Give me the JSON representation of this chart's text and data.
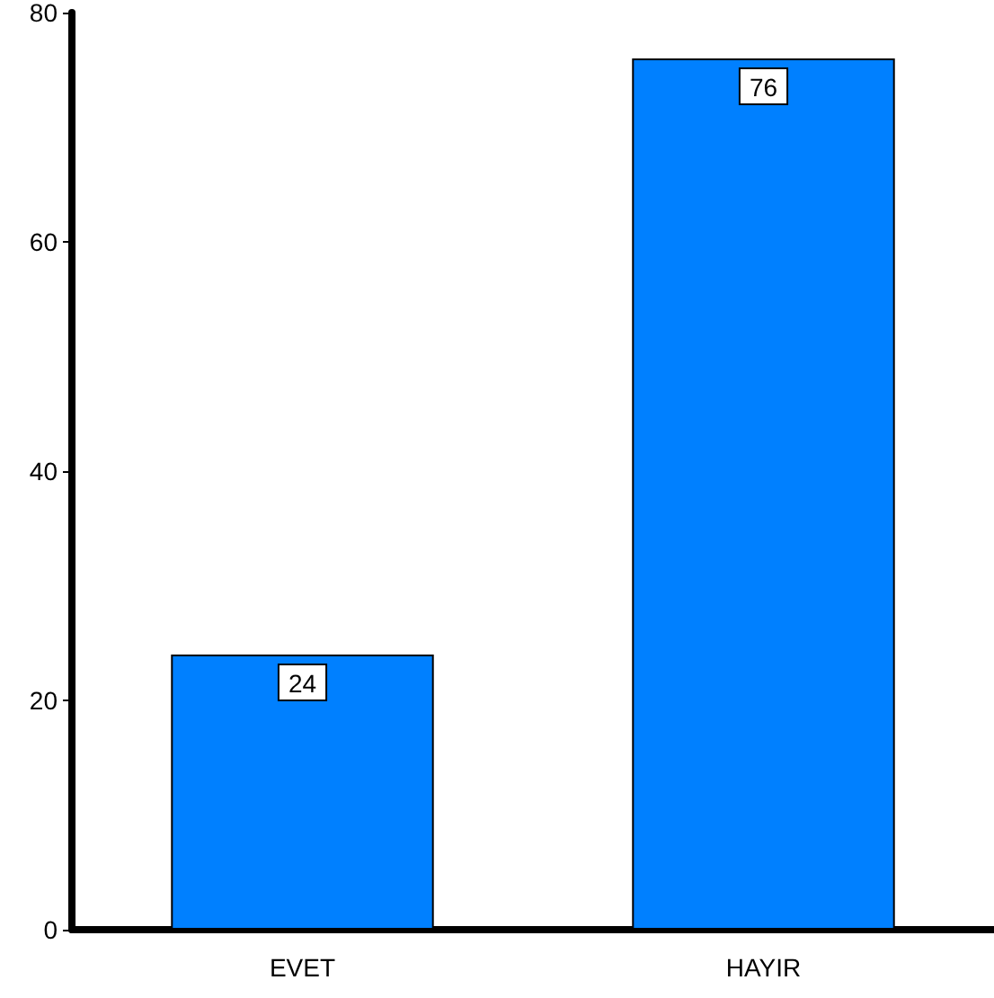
{
  "chart_data": {
    "type": "bar",
    "categories": [
      "EVET",
      "HAYIR"
    ],
    "values": [
      24,
      76
    ],
    "color": "#0080ff",
    "ylim": [
      0,
      80
    ],
    "yticks": [
      0,
      20,
      40,
      60,
      80
    ],
    "grid": false,
    "data_labels": true
  }
}
